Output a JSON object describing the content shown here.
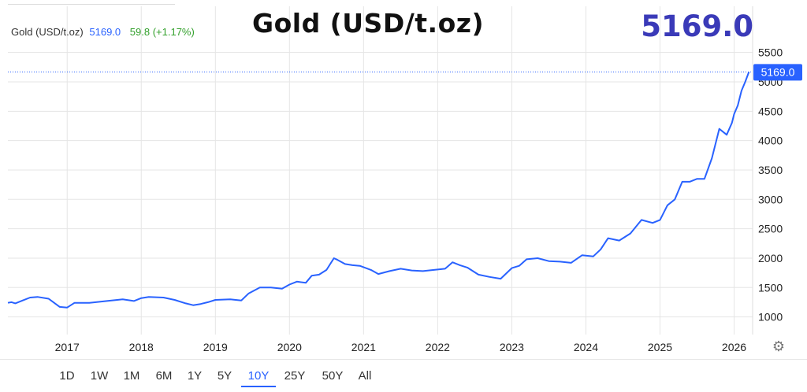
{
  "legend": {
    "symbol": "Gold (USD/t.oz)",
    "price": "5169.0",
    "change": "59.8",
    "change_pct": "(+1.17%)"
  },
  "title": "Gold (USD/t.oz)",
  "big_price": "5169.0",
  "price_tag": "5169.0",
  "colors": {
    "line": "#2962ff",
    "up": "#33a02c",
    "grid": "#e5e5e5",
    "tag_bg": "#2962ff",
    "big_price": "#3a3ab8"
  },
  "ranges": [
    "1D",
    "1W",
    "1M",
    "6M",
    "1Y",
    "5Y",
    "10Y",
    "25Y",
    "50Y",
    "All"
  ],
  "active_range": "10Y",
  "settings_icon": "gear-icon",
  "chart_data": {
    "type": "line",
    "title": "Gold (USD/t.oz)",
    "ylim": [
      700,
      5750
    ],
    "xlim": [
      2016.2,
      2026.25
    ],
    "grid": true,
    "y_ticks": [
      1000,
      1500,
      2000,
      2500,
      3000,
      3500,
      4000,
      4500,
      5000,
      5500
    ],
    "x_ticks": [
      2017,
      2018,
      2019,
      2020,
      2021,
      2022,
      2023,
      2024,
      2025,
      2026
    ],
    "series": [
      {
        "name": "Gold (USD/t.oz)",
        "x": [
          2016.2,
          2016.25,
          2016.3,
          2016.4,
          2016.5,
          2016.6,
          2016.75,
          2016.9,
          2017.0,
          2017.1,
          2017.3,
          2017.45,
          2017.6,
          2017.75,
          2017.9,
          2018.0,
          2018.1,
          2018.3,
          2018.45,
          2018.6,
          2018.7,
          2018.8,
          2018.9,
          2019.0,
          2019.2,
          2019.35,
          2019.45,
          2019.6,
          2019.75,
          2019.9,
          2020.0,
          2020.1,
          2020.22,
          2020.3,
          2020.4,
          2020.5,
          2020.6,
          2020.65,
          2020.75,
          2020.85,
          2020.95,
          2021.1,
          2021.2,
          2021.35,
          2021.5,
          2021.65,
          2021.8,
          2021.95,
          2022.1,
          2022.2,
          2022.3,
          2022.4,
          2022.55,
          2022.7,
          2022.85,
          2023.0,
          2023.1,
          2023.2,
          2023.35,
          2023.5,
          2023.65,
          2023.8,
          2023.95,
          2024.1,
          2024.2,
          2024.3,
          2024.45,
          2024.6,
          2024.75,
          2024.9,
          2025.0,
          2025.1,
          2025.2,
          2025.3,
          2025.4,
          2025.5,
          2025.6,
          2025.7,
          2025.8,
          2025.9,
          2025.97,
          2026.0,
          2026.05,
          2026.1,
          2026.15,
          2026.2
        ],
        "y": [
          1240,
          1250,
          1230,
          1280,
          1330,
          1340,
          1310,
          1170,
          1160,
          1240,
          1240,
          1260,
          1280,
          1300,
          1270,
          1320,
          1340,
          1330,
          1290,
          1230,
          1200,
          1220,
          1250,
          1290,
          1300,
          1280,
          1400,
          1500,
          1500,
          1480,
          1550,
          1600,
          1580,
          1700,
          1720,
          1800,
          2000,
          1970,
          1900,
          1880,
          1870,
          1800,
          1730,
          1780,
          1820,
          1790,
          1780,
          1800,
          1820,
          1930,
          1880,
          1840,
          1720,
          1680,
          1650,
          1830,
          1870,
          1980,
          2000,
          1950,
          1940,
          1920,
          2050,
          2030,
          2150,
          2340,
          2300,
          2420,
          2650,
          2600,
          2650,
          2900,
          3000,
          3300,
          3300,
          3350,
          3350,
          3700,
          4200,
          4100,
          4300,
          4450,
          4600,
          4850,
          5000,
          5169
        ]
      }
    ]
  }
}
